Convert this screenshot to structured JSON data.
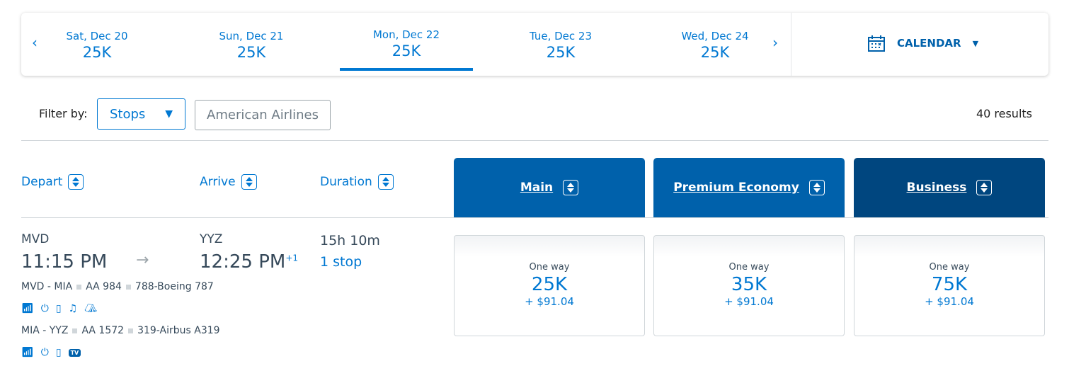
{
  "date_bar": {
    "prev_icon": "chevron-left-icon",
    "next_icon": "chevron-right-icon",
    "dates": [
      {
        "label": "Sat, Dec 20",
        "price": "25K"
      },
      {
        "label": "Sun, Dec 21",
        "price": "25K"
      },
      {
        "label": "Mon, Dec 22",
        "price": "25K",
        "selected": true
      },
      {
        "label": "Tue, Dec 23",
        "price": "25K"
      },
      {
        "label": "Wed, Dec 24",
        "price": "25K"
      }
    ],
    "calendar_label": "CALENDAR"
  },
  "filters": {
    "label": "Filter by:",
    "stops": "Stops",
    "airline": "American Airlines",
    "results": "40 results"
  },
  "columns": {
    "depart": "Depart",
    "arrive": "Arrive",
    "duration": "Duration",
    "cabins": [
      {
        "label": "Main",
        "color": "#0061ab"
      },
      {
        "label": "Premium Economy",
        "color": "#0061ab"
      },
      {
        "label": "Business",
        "color": "#00467f"
      }
    ]
  },
  "flight": {
    "origin": "MVD",
    "depart_time": "11:15 PM",
    "destination": "YYZ",
    "arrive_time": "12:25 PM",
    "day_offset": "+1",
    "duration": "15h 10m",
    "stops": "1 stop",
    "segments": [
      {
        "route": "MVD - MIA",
        "flight": "AA 984",
        "aircraft": "788-Boeing 787",
        "amenities": [
          "wifi-icon",
          "power-icon",
          "usb-icon",
          "entertainment-icon",
          "lie-flat-seat-icon"
        ]
      },
      {
        "route": "MIA - YYZ",
        "flight": "AA 1572",
        "aircraft": "319-Airbus A319",
        "amenities": [
          "wifi-icon",
          "power-icon",
          "device-entertainment-icon",
          "tv-icon"
        ],
        "tv_label": "TV"
      }
    ],
    "fares": [
      {
        "type": "One way",
        "miles": "25K",
        "taxes": "+ $91.04"
      },
      {
        "type": "One way",
        "miles": "35K",
        "taxes": "+ $91.04"
      },
      {
        "type": "One way",
        "miles": "75K",
        "taxes": "+ $91.04"
      }
    ]
  },
  "colors": {
    "accent": "#0078d2",
    "header": "#0061ab",
    "business": "#00467f",
    "text": "#36495a"
  }
}
